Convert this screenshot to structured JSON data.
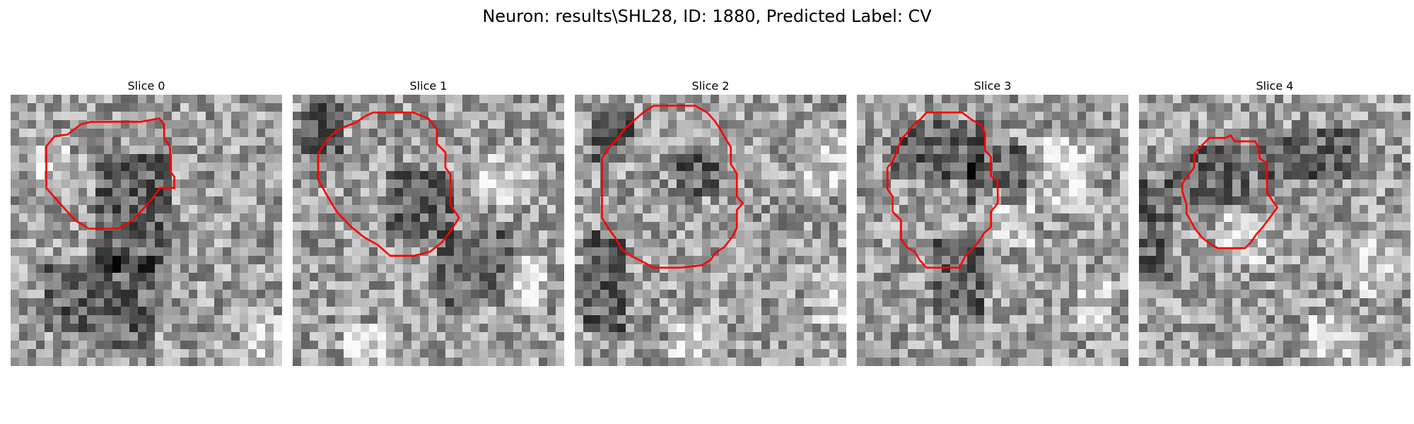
{
  "figure": {
    "title": "Neuron: results\\SHL28, ID: 1880, Predicted Label: CV"
  },
  "panels": [
    {
      "title": "Slice 0",
      "seed": 101,
      "dark_blobs": [
        [
          10,
          7,
          9,
          14
        ],
        [
          4,
          20,
          5,
          8
        ],
        [
          9,
          19,
          8,
          11
        ]
      ],
      "light_blobs": [
        [
          27,
          26,
          6,
          6
        ],
        [
          2,
          6,
          5,
          5
        ]
      ],
      "contour": [
        [
          9.5,
          3.2
        ],
        [
          15.3,
          3.2
        ],
        [
          17.5,
          2.8
        ],
        [
          18.1,
          3.5
        ],
        [
          18.1,
          5.1
        ],
        [
          18.8,
          6.2
        ],
        [
          18.8,
          9.0
        ],
        [
          19.3,
          9.7
        ],
        [
          19.3,
          11.0
        ],
        [
          17.6,
          11.0
        ],
        [
          16.6,
          12.4
        ],
        [
          14.4,
          14.8
        ],
        [
          12.7,
          15.8
        ],
        [
          9.2,
          15.8
        ],
        [
          7.6,
          14.8
        ],
        [
          5.8,
          12.8
        ],
        [
          4.2,
          11.0
        ],
        [
          4.2,
          6.1
        ],
        [
          5.2,
          4.9
        ],
        [
          6.7,
          4.7
        ],
        [
          8.3,
          3.5
        ]
      ]
    },
    {
      "title": "Slice 1",
      "seed": 202,
      "dark_blobs": [
        [
          11,
          9,
          8,
          8
        ],
        [
          17,
          16,
          9,
          9
        ],
        [
          1,
          1,
          5,
          6
        ]
      ],
      "light_blobs": [
        [
          22,
          7,
          6,
          6
        ],
        [
          25,
          19,
          5,
          7
        ],
        [
          6,
          27,
          6,
          5
        ]
      ],
      "contour": [
        [
          9.5,
          2.1
        ],
        [
          14.2,
          2.1
        ],
        [
          16.0,
          2.8
        ],
        [
          17.0,
          4.1
        ],
        [
          17.0,
          5.8
        ],
        [
          18.0,
          6.8
        ],
        [
          18.0,
          8.6
        ],
        [
          18.6,
          9.4
        ],
        [
          18.6,
          13.0
        ],
        [
          19.6,
          14.5
        ],
        [
          18.6,
          16.1
        ],
        [
          17.6,
          17.4
        ],
        [
          16.2,
          18.5
        ],
        [
          14.3,
          19.0
        ],
        [
          11.5,
          19.0
        ],
        [
          10.0,
          17.7
        ],
        [
          8.4,
          16.8
        ],
        [
          6.9,
          15.6
        ],
        [
          5.2,
          13.8
        ],
        [
          4.0,
          11.8
        ],
        [
          3.0,
          10.0
        ],
        [
          3.0,
          7.0
        ],
        [
          4.0,
          5.3
        ],
        [
          5.0,
          4.4
        ],
        [
          6.1,
          3.8
        ],
        [
          7.4,
          3.3
        ],
        [
          8.6,
          2.5
        ]
      ]
    },
    {
      "title": "Slice 2",
      "seed": 303,
      "dark_blobs": [
        [
          12,
          6,
          5,
          6
        ],
        [
          2,
          2,
          5,
          6
        ],
        [
          1,
          16,
          5,
          12
        ]
      ],
      "light_blobs": [
        [
          26,
          4,
          6,
          8
        ],
        [
          28,
          21,
          6,
          6
        ],
        [
          11,
          26,
          6,
          5
        ]
      ],
      "contour": [
        [
          9.3,
          1.3
        ],
        [
          14.2,
          1.3
        ],
        [
          15.6,
          2.1
        ],
        [
          16.5,
          3.1
        ],
        [
          17.1,
          4.0
        ],
        [
          17.9,
          5.4
        ],
        [
          18.4,
          6.2
        ],
        [
          18.4,
          8.2
        ],
        [
          19.1,
          9.3
        ],
        [
          19.1,
          12.0
        ],
        [
          19.8,
          12.8
        ],
        [
          19.1,
          13.6
        ],
        [
          19.1,
          15.7
        ],
        [
          18.6,
          16.7
        ],
        [
          17.6,
          18.0
        ],
        [
          16.6,
          18.6
        ],
        [
          16.0,
          19.5
        ],
        [
          15.0,
          20.1
        ],
        [
          12.5,
          20.4
        ],
        [
          9.3,
          20.4
        ],
        [
          8.2,
          19.8
        ],
        [
          6.8,
          19.1
        ],
        [
          5.6,
          18.3
        ],
        [
          4.8,
          16.9
        ],
        [
          4.0,
          15.8
        ],
        [
          3.2,
          14.5
        ],
        [
          3.2,
          7.5
        ],
        [
          4.0,
          6.3
        ],
        [
          5.0,
          5.2
        ],
        [
          6.0,
          3.9
        ],
        [
          7.0,
          3.0
        ],
        [
          8.2,
          2.0
        ]
      ]
    },
    {
      "title": "Slice 3",
      "seed": 404,
      "dark_blobs": [
        [
          4,
          3,
          11,
          7
        ],
        [
          9,
          17,
          6,
          9
        ],
        [
          13,
          6,
          7,
          7
        ]
      ],
      "light_blobs": [
        [
          22,
          5,
          6,
          9
        ],
        [
          26,
          22,
          4,
          6
        ],
        [
          14,
          11,
          7,
          7
        ]
      ],
      "contour": [
        [
          8.2,
          2.1
        ],
        [
          12.4,
          2.1
        ],
        [
          13.6,
          3.0
        ],
        [
          14.7,
          3.6
        ],
        [
          15.1,
          4.5
        ],
        [
          15.1,
          6.6
        ],
        [
          15.8,
          7.3
        ],
        [
          15.8,
          9.6
        ],
        [
          16.6,
          10.2
        ],
        [
          16.6,
          12.8
        ],
        [
          15.8,
          13.8
        ],
        [
          15.8,
          15.6
        ],
        [
          15.0,
          16.3
        ],
        [
          14.4,
          17.3
        ],
        [
          13.6,
          18.2
        ],
        [
          12.8,
          19.0
        ],
        [
          12.1,
          20.4
        ],
        [
          8.2,
          20.4
        ],
        [
          7.4,
          19.5
        ],
        [
          6.8,
          18.5
        ],
        [
          5.9,
          18.0
        ],
        [
          5.2,
          17.0
        ],
        [
          5.2,
          14.8
        ],
        [
          4.2,
          13.8
        ],
        [
          4.2,
          12.0
        ],
        [
          3.6,
          11.1
        ],
        [
          3.6,
          8.6
        ],
        [
          4.2,
          7.9
        ],
        [
          4.8,
          6.5
        ],
        [
          5.2,
          5.3
        ],
        [
          6.1,
          4.3
        ],
        [
          6.8,
          3.4
        ],
        [
          7.5,
          2.9
        ]
      ]
    },
    {
      "title": "Slice 4",
      "seed": 505,
      "dark_blobs": [
        [
          4,
          6,
          9,
          7
        ],
        [
          14,
          4,
          12,
          6
        ],
        [
          0,
          10,
          4,
          12
        ]
      ],
      "light_blobs": [
        [
          9,
          14,
          6,
          6
        ],
        [
          26,
          17,
          5,
          7
        ],
        [
          20,
          26,
          6,
          5
        ]
      ],
      "contour": [
        [
          10.8,
          4.8
        ],
        [
          11.3,
          5.5
        ],
        [
          13.7,
          5.5
        ],
        [
          14.2,
          6.5
        ],
        [
          14.2,
          7.5
        ],
        [
          15.1,
          8.1
        ],
        [
          15.1,
          11.5
        ],
        [
          15.8,
          12.6
        ],
        [
          16.3,
          13.3
        ],
        [
          15.5,
          14.4
        ],
        [
          14.6,
          15.6
        ],
        [
          13.8,
          16.5
        ],
        [
          13.2,
          17.4
        ],
        [
          12.5,
          18.1
        ],
        [
          9.3,
          18.1
        ],
        [
          8.4,
          17.6
        ],
        [
          7.5,
          16.9
        ],
        [
          6.6,
          15.8
        ],
        [
          6.0,
          14.7
        ],
        [
          5.6,
          14.0
        ],
        [
          5.6,
          12.9
        ],
        [
          5.1,
          11.4
        ],
        [
          5.1,
          10.5
        ],
        [
          5.7,
          9.6
        ],
        [
          6.5,
          8.6
        ],
        [
          6.5,
          7.0
        ],
        [
          7.4,
          6.0
        ],
        [
          8.3,
          5.1
        ],
        [
          10.2,
          5.1
        ]
      ]
    }
  ],
  "style": {
    "contour_color": "#ff0000",
    "grid_size": 32
  }
}
